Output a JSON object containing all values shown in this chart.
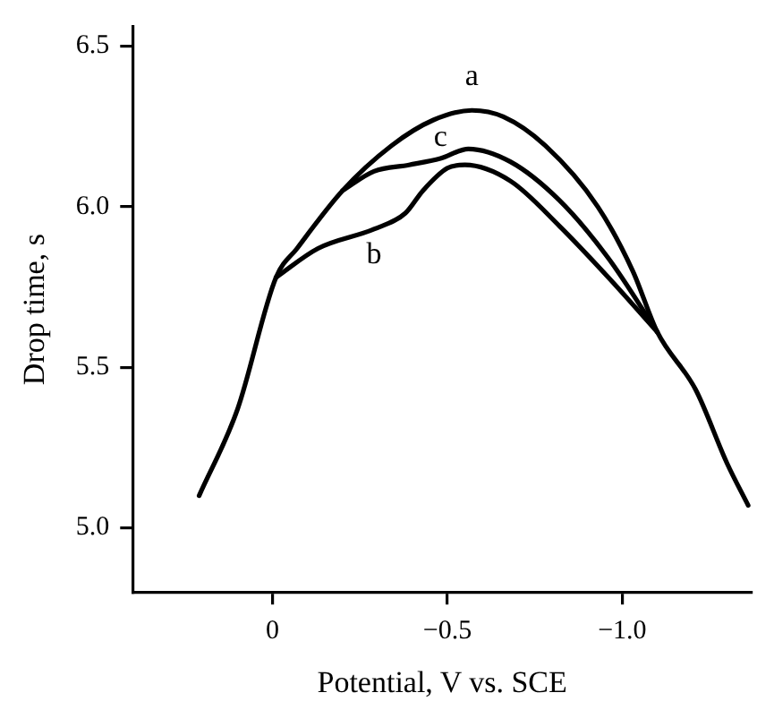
{
  "chart_data": {
    "type": "line",
    "xlabel": "Potential, V vs. SCE",
    "ylabel": "Drop time, s",
    "xlim": [
      0.4,
      -1.37
    ],
    "xticks": [
      0,
      {
        "value": -0.5,
        "label": "−0.5"
      },
      {
        "value": -1.0,
        "label": "−1.0"
      }
    ],
    "ylim": [
      4.8,
      6.56
    ],
    "yticks": [
      {
        "value": 5.0,
        "label": "5.0"
      },
      {
        "value": 5.5,
        "label": "5.5"
      },
      {
        "value": 6.0,
        "label": "6.0"
      },
      {
        "value": 6.5,
        "label": "6.5"
      }
    ],
    "grid": false,
    "legend": false,
    "marker": "none",
    "line_style": "solid",
    "series": [
      {
        "name": "a",
        "color": "#000000",
        "x": [
          0.21,
          0.1,
          -0.01,
          -0.07,
          -0.2,
          -0.34,
          -0.46,
          -0.57,
          -0.66,
          -0.78,
          -0.93,
          -1.03,
          -1.1,
          -1.21,
          -1.3,
          -1.36
        ],
        "values": [
          5.1,
          5.37,
          5.78,
          5.87,
          6.05,
          6.19,
          6.27,
          6.3,
          6.28,
          6.19,
          6.0,
          5.8,
          5.61,
          5.43,
          5.2,
          5.07
        ]
      },
      {
        "name": "b",
        "color": "#000000",
        "x": [
          -0.01,
          -0.13,
          -0.29,
          -0.38,
          -0.43,
          -0.5,
          -0.55,
          -0.68,
          -0.82,
          -0.96,
          -1.1
        ],
        "values": [
          5.78,
          5.87,
          5.93,
          5.98,
          6.05,
          6.12,
          6.13,
          6.08,
          5.94,
          5.78,
          5.61
        ]
      },
      {
        "name": "c",
        "color": "#000000",
        "x": [
          -0.2,
          -0.29,
          -0.39,
          -0.48,
          -0.56,
          -0.68,
          -0.82,
          -0.96,
          -1.1
        ],
        "values": [
          6.05,
          6.11,
          6.13,
          6.15,
          6.18,
          6.14,
          6.02,
          5.84,
          5.61
        ]
      }
    ]
  }
}
